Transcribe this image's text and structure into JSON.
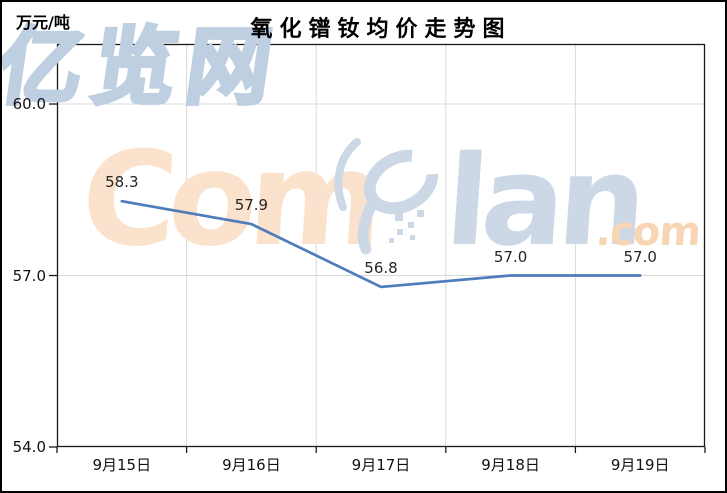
{
  "header": {
    "unit_label": "万元/吨",
    "title": "氧化镨钕均价走势图"
  },
  "chart_data": {
    "type": "line",
    "title": "氧化镨钕均价走势图",
    "y_unit": "万元/吨",
    "categories": [
      "9月15日",
      "9月16日",
      "9月17日",
      "9月18日",
      "9月19日"
    ],
    "values": [
      58.3,
      57.9,
      56.8,
      57.0,
      57.0
    ],
    "point_labels": [
      "58.3",
      "57.9",
      "56.8",
      "57.0",
      "57.0"
    ],
    "yticks": [
      60.0,
      57.0,
      54.0
    ],
    "ytick_labels": [
      "60.0",
      "57.0",
      "54.0"
    ],
    "ylim": [
      54.0,
      61.05
    ],
    "grid": true,
    "legend": false,
    "line_color": "#4f7cba"
  },
  "watermark": {
    "text_com": "Com",
    "text_lan": "lan",
    "text_domain": ".com",
    "text_cn": "亿览网"
  },
  "colors": {
    "grid": "#d9d9d9",
    "axis": "#1a1a1a",
    "label": "#262626",
    "peach": "#fbe2cc",
    "logo_blue": "#ccd8e6",
    "outline_blue": "#bdcfe0"
  }
}
